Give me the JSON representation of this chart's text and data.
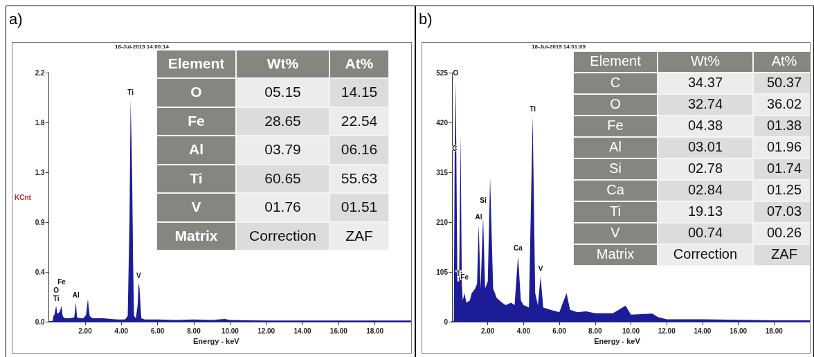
{
  "chart_data": [
    {
      "type": "area",
      "title": "a)",
      "subtitle": "18-Jul-2019 14:00:14",
      "xlabel": "Energy - keV",
      "ylabel": "KCnt",
      "grid": false,
      "xlim": [
        0,
        20
      ],
      "xticks": [
        {
          "value": 2,
          "label": "2.00"
        },
        {
          "value": 4,
          "label": "4.00"
        },
        {
          "value": 6,
          "label": "6.00"
        },
        {
          "value": 8,
          "label": "8.00"
        },
        {
          "value": 10,
          "label": "10.00"
        },
        {
          "value": 12,
          "label": "12.00"
        },
        {
          "value": 14,
          "label": "14.00"
        },
        {
          "value": 16,
          "label": "16.00"
        },
        {
          "value": 18,
          "label": "18.00"
        }
      ],
      "ylim": [
        0,
        2.2
      ],
      "yticks": [
        {
          "value": 0,
          "label": "0.0"
        },
        {
          "value": 0.44,
          "label": "0.4"
        },
        {
          "value": 0.88,
          "label": "0.9"
        },
        {
          "value": 1.32,
          "label": "1.3"
        },
        {
          "value": 1.76,
          "label": "1.8"
        },
        {
          "value": 2.2,
          "label": "2.2"
        }
      ],
      "series": [
        {
          "color": "#1c1c99",
          "x": [
            0.2,
            0.25,
            0.3,
            0.4,
            0.45,
            0.5,
            0.6,
            0.7,
            0.75,
            0.8,
            0.9,
            1.0,
            1.2,
            1.4,
            1.49,
            1.55,
            1.7,
            1.9,
            2.05,
            2.15,
            2.25,
            2.4,
            2.6,
            3.0,
            3.4,
            3.8,
            4.2,
            4.35,
            4.45,
            4.51,
            4.56,
            4.6,
            4.65,
            4.7,
            4.8,
            4.9,
            4.95,
            5.0,
            5.1,
            5.3,
            6.0,
            7.0,
            8.0,
            9.0,
            9.7,
            10.0,
            11.0,
            12.0,
            14.0,
            16.0,
            18.0,
            20.0
          ],
          "values": [
            0,
            0.05,
            0.06,
            0.14,
            0.08,
            0.07,
            0.09,
            0.14,
            0.06,
            0.04,
            0.03,
            0.03,
            0.03,
            0.04,
            0.17,
            0.04,
            0.03,
            0.03,
            0.06,
            0.2,
            0.05,
            0.03,
            0.03,
            0.03,
            0.025,
            0.02,
            0.02,
            0.05,
            0.9,
            1.96,
            1.6,
            1.2,
            0.5,
            0.05,
            0.03,
            0.15,
            0.34,
            0.3,
            0.03,
            0.02,
            0.02,
            0.015,
            0.02,
            0.015,
            0.025,
            0.015,
            0.012,
            0.01,
            0.01,
            0.01,
            0.01,
            0.01
          ]
        }
      ],
      "annotations": [
        {
          "text": "Ti",
          "x": 0.4,
          "y": 0.14
        },
        {
          "text": "O",
          "x": 0.4,
          "y": 0.14
        },
        {
          "text": "Fe",
          "x": 0.7,
          "y": 0.14
        },
        {
          "text": "Al",
          "x": 1.49,
          "y": 0.17
        },
        {
          "text": "Ti",
          "x": 4.51,
          "y": 1.96
        },
        {
          "text": "V",
          "x": 4.95,
          "y": 0.34
        }
      ]
    },
    {
      "type": "other",
      "annotations": [
        "Element",
        "Wt%",
        "At%",
        "O",
        "05.15",
        "14.15",
        "Fe",
        "28.65",
        "22.54",
        "Al",
        "03.79",
        "06.16",
        "Ti",
        "60.65",
        "55.63",
        "V",
        "01.76",
        "01.51",
        "Matrix",
        "Correction",
        "ZAF"
      ]
    },
    {
      "type": "area",
      "title": "b)",
      "subtitle": "18-Jul-2019 14:01:09",
      "xlabel": "Energy - keV",
      "grid": false,
      "xlim": [
        0,
        20
      ],
      "xticks": [
        {
          "value": 2,
          "label": "2.00"
        },
        {
          "value": 4,
          "label": "4.00"
        },
        {
          "value": 6,
          "label": "6.00"
        },
        {
          "value": 8,
          "label": "8.00"
        },
        {
          "value": 10,
          "label": "10.00"
        },
        {
          "value": 12,
          "label": "12.00"
        },
        {
          "value": 14,
          "label": "14.00"
        },
        {
          "value": 16,
          "label": "16.00"
        },
        {
          "value": 18,
          "label": "18.00"
        }
      ],
      "ylim": [
        0,
        525
      ],
      "yticks": [
        0,
        105,
        210,
        315,
        420,
        525
      ],
      "series": [
        {
          "color": "#1c1c99",
          "x": [
            0.1,
            0.15,
            0.21,
            0.3,
            0.4,
            0.48,
            0.55,
            0.6,
            0.7,
            0.8,
            1.0,
            1.1,
            1.2,
            1.3,
            1.4,
            1.49,
            1.6,
            1.74,
            1.85,
            2.0,
            2.13,
            2.3,
            2.5,
            2.8,
            3.0,
            3.3,
            3.5,
            3.69,
            3.85,
            4.0,
            4.3,
            4.51,
            4.65,
            4.8,
            4.95,
            5.1,
            5.5,
            6.0,
            6.4,
            6.6,
            7.0,
            7.5,
            8.0,
            9.0,
            9.7,
            10.0,
            11.2,
            11.5,
            12.0,
            14.0,
            16.0,
            18.0,
            20.0
          ],
          "values": [
            0,
            350,
            508,
            85,
            85,
            394,
            80,
            45,
            60,
            40,
            45,
            60,
            65,
            70,
            80,
            205,
            70,
            222,
            70,
            85,
            304,
            70,
            50,
            40,
            35,
            40,
            35,
            139,
            45,
            35,
            30,
            433,
            60,
            35,
            95,
            30,
            25,
            20,
            60,
            25,
            20,
            22,
            18,
            18,
            34,
            15,
            17,
            10,
            5,
            5,
            4,
            3,
            3
          ]
        }
      ],
      "annotations": [
        {
          "text": "O",
          "x": 0.21,
          "y": 508
        },
        {
          "text": "C",
          "x": 0.15,
          "y": 350
        },
        {
          "text": "Ti",
          "x": 0.4,
          "y": 85
        },
        {
          "text": "Fe",
          "x": 0.7,
          "y": 60
        },
        {
          "text": "Al",
          "x": 1.49,
          "y": 205
        },
        {
          "text": "Si",
          "x": 1.74,
          "y": 222
        },
        {
          "text": "Ca",
          "x": 3.69,
          "y": 139
        },
        {
          "text": "Ti",
          "x": 4.51,
          "y": 433
        },
        {
          "text": "V",
          "x": 4.95,
          "y": 95
        }
      ]
    },
    {
      "type": "other",
      "annotations": [
        "Element",
        "Wt%",
        "At%",
        "C",
        "34.37",
        "50.37",
        "O",
        "32.74",
        "36.02",
        "Fe",
        "04.38",
        "01.38",
        "Al",
        "03.01",
        "01.96",
        "Si",
        "02.78",
        "01.74",
        "Ca",
        "02.84",
        "01.25",
        "Ti",
        "19.13",
        "07.03",
        "V",
        "00.74",
        "00.26",
        "Matrix",
        "Correction",
        "ZAF"
      ]
    }
  ]
}
